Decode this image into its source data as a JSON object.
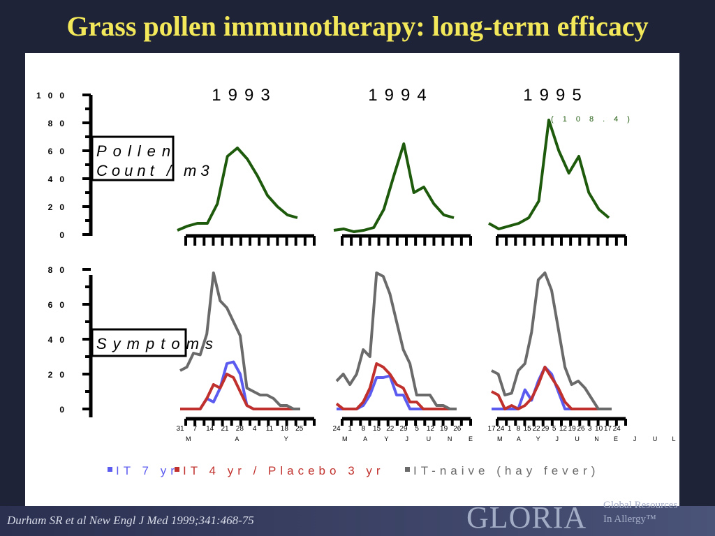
{
  "title": "Grass pollen immunotherapy: long-term efficacy",
  "citation": "Durham SR et al New Engl J Med 1999;341:468-75",
  "logo": {
    "word": "GLORIA",
    "line1": "Global Resources",
    "line2": "In Allergy™"
  },
  "colors": {
    "pollen": "#1e5a0c",
    "it7": "#5b5bf0",
    "it4": "#c0302c",
    "naive": "#6a6a6a",
    "axis": "#000000"
  },
  "chart_data": [
    {
      "type": "line",
      "panel": "top",
      "axis_label_lines": [
        "Pollen",
        "Count / m3"
      ],
      "y_ticks": [
        "0",
        "20",
        "40",
        "60",
        "80",
        "100"
      ],
      "ylim": [
        0,
        100
      ],
      "years": [
        "1993",
        "1994",
        "1995"
      ],
      "annotation": "(108.4)",
      "series": [
        {
          "name": "Pollen count",
          "color_key": "pollen",
          "years": [
            [
              3,
              6,
              8,
              8,
              22,
              56,
              62,
              54,
              42,
              28,
              20,
              14,
              12
            ],
            [
              3,
              4,
              2,
              3,
              5,
              18,
              42,
              65,
              30,
              34,
              22,
              14,
              12
            ],
            [
              8,
              4,
              6,
              8,
              12,
              24,
              82,
              60,
              44,
              56,
              30,
              18,
              12
            ]
          ]
        }
      ]
    },
    {
      "type": "line",
      "panel": "bottom",
      "axis_label_lines": [
        "Symptoms"
      ],
      "y_ticks": [
        "0",
        "20",
        "40",
        "60",
        "80"
      ],
      "ylim": [
        0,
        80
      ],
      "x_ticks": [
        [
          "31",
          "7",
          "14",
          "21",
          "28",
          "4",
          "11",
          "18",
          "25"
        ],
        [
          "24",
          "1",
          "8",
          "15",
          "22",
          "29",
          "5",
          "12",
          "19",
          "26"
        ],
        [
          "17",
          "24",
          "1",
          "8",
          "15",
          "22",
          "29",
          "5",
          "12",
          "19",
          "26",
          "3",
          "10",
          "17",
          "24"
        ]
      ],
      "x_month_labels": [
        [
          "M",
          "A",
          "Y"
        ],
        [
          "M",
          "A",
          "Y",
          "J",
          "U",
          "N",
          "E"
        ],
        [
          "M",
          "A",
          "Y",
          "J",
          "U",
          "N",
          "E",
          "J",
          "U",
          "L"
        ]
      ],
      "series": [
        {
          "name": "IT 7 yr",
          "color_key": "it7",
          "years": [
            [
              0,
              0,
              0,
              0,
              6,
              4,
              12,
              26,
              27,
              20,
              2,
              0,
              0,
              0,
              0,
              0,
              0,
              0,
              0
            ],
            [
              0,
              0,
              0,
              0,
              2,
              8,
              18,
              18,
              19,
              8,
              8,
              0,
              0,
              0,
              0,
              0,
              0,
              0,
              0
            ],
            [
              0,
              0,
              0,
              0,
              0,
              11,
              5,
              16,
              24,
              20,
              10,
              0,
              0,
              0,
              0,
              0,
              0,
              0,
              0
            ]
          ]
        },
        {
          "name": "IT 4 yr / Placebo 3 yr",
          "color_key": "it4",
          "years": [
            [
              0,
              0,
              0,
              0,
              6,
              14,
              12,
              20,
              18,
              10,
              2,
              0,
              0,
              0,
              0,
              0,
              0,
              0,
              0
            ],
            [
              3,
              0,
              0,
              0,
              4,
              12,
              26,
              24,
              20,
              14,
              12,
              4,
              4,
              0,
              0,
              0,
              0,
              0,
              0
            ],
            [
              10,
              8,
              0,
              2,
              0,
              2,
              6,
              14,
              24,
              18,
              12,
              4,
              0,
              0,
              0,
              0,
              0,
              0,
              0
            ]
          ]
        },
        {
          "name": "IT-naive (hay fever)",
          "color_key": "naive",
          "years": [
            [
              22,
              24,
              32,
              31,
              43,
              78,
              62,
              58,
              50,
              42,
              12,
              10,
              8,
              8,
              6,
              2,
              2,
              0,
              0
            ],
            [
              16,
              20,
              14,
              20,
              34,
              30,
              78,
              76,
              66,
              50,
              34,
              26,
              8,
              8,
              8,
              2,
              2,
              0,
              0
            ],
            [
              22,
              20,
              8,
              9,
              22,
              26,
              44,
              74,
              78,
              68,
              46,
              24,
              14,
              16,
              12,
              6,
              0,
              0,
              0
            ]
          ]
        }
      ]
    }
  ],
  "legend": [
    {
      "label": "IT 7 yr",
      "color_key": "it7"
    },
    {
      "label": "IT 4 yr / Placebo 3 yr",
      "color_key": "it4"
    },
    {
      "label": "IT-naive (hay fever)",
      "color_key": "naive"
    }
  ]
}
